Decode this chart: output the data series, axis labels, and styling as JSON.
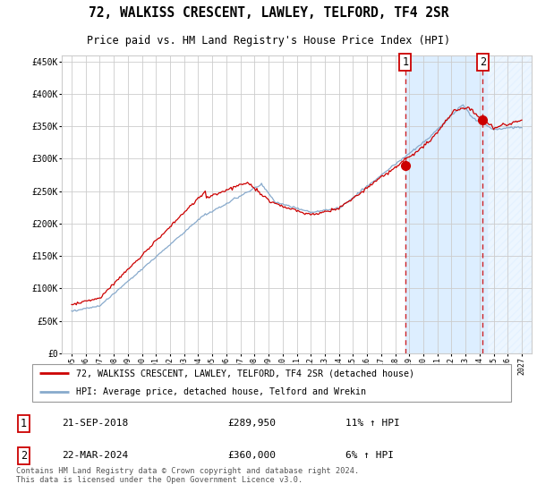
{
  "title": "72, WALKISS CRESCENT, LAWLEY, TELFORD, TF4 2SR",
  "subtitle": "Price paid vs. HM Land Registry's House Price Index (HPI)",
  "legend_line1": "72, WALKISS CRESCENT, LAWLEY, TELFORD, TF4 2SR (detached house)",
  "legend_line2": "HPI: Average price, detached house, Telford and Wrekin",
  "annotation1_date": "21-SEP-2018",
  "annotation1_price": "£289,950",
  "annotation1_hpi": "11% ↑ HPI",
  "annotation2_date": "22-MAR-2024",
  "annotation2_price": "£360,000",
  "annotation2_hpi": "6% ↑ HPI",
  "footer": "Contains HM Land Registry data © Crown copyright and database right 2024.\nThis data is licensed under the Open Government Licence v3.0.",
  "red_color": "#cc0000",
  "blue_color": "#88aacc",
  "plot_bg_color": "#ffffff",
  "shade_color": "#ddeeff",
  "grid_color": "#cccccc",
  "ylim": [
    0,
    460000
  ],
  "xlim_left": 1994.3,
  "xlim_right": 2027.7,
  "sale1_x": 2018.72,
  "sale1_y": 289950,
  "sale2_x": 2024.22,
  "sale2_y": 360000,
  "hatch_start": 2024.5
}
